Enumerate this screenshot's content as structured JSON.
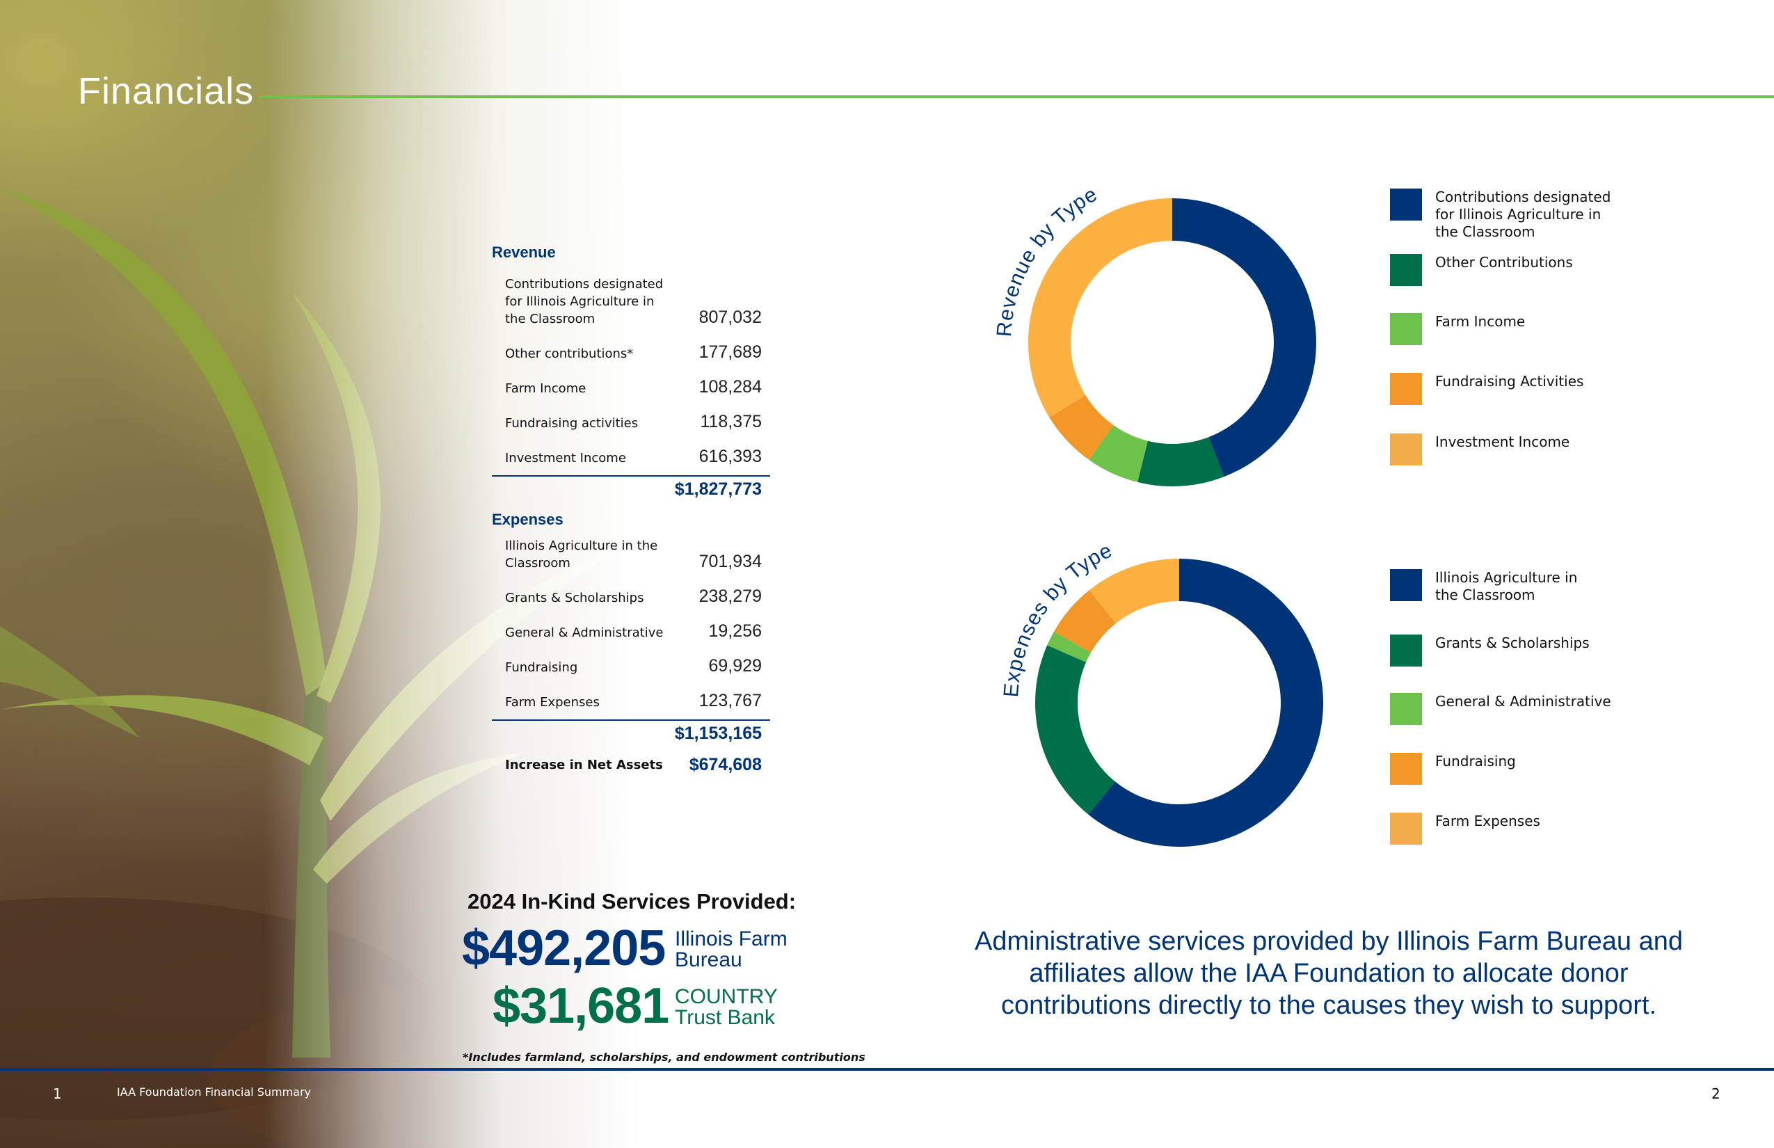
{
  "page": {
    "title": "Financials",
    "footer_left_page": "1",
    "footer_left_doc": "IAA Foundation Financial Summary",
    "footer_right_page": "2"
  },
  "financials": {
    "revenue_heading": "Revenue",
    "revenue_items": [
      {
        "label": "Contributions designated for Illinois Agriculture in the Classroom",
        "value": "807,032"
      },
      {
        "label": "Other contributions*",
        "value": "177,689"
      },
      {
        "label": "Farm Income",
        "value": "108,284"
      },
      {
        "label": "Fundraising activities",
        "value": "118,375"
      },
      {
        "label": "Investment Income",
        "value": "616,393"
      }
    ],
    "revenue_total": "$1,827,773",
    "expenses_heading": "Expenses",
    "expense_items": [
      {
        "label": "Illinois Agriculture in the Classroom",
        "value": "701,934"
      },
      {
        "label": "Grants & Scholarships",
        "value": "238,279"
      },
      {
        "label": "General & Administrative",
        "value": "19,256"
      },
      {
        "label": "Fundraising",
        "value": "69,929"
      },
      {
        "label": "Farm Expenses",
        "value": "123,767"
      }
    ],
    "expense_total": "$1,153,165",
    "net_label": "Increase in Net Assets",
    "net_value": "$674,608"
  },
  "in_kind": {
    "title": "2024 In-Kind Services Provided:",
    "amount_1": "$492,205",
    "source_1": "Illinois Farm Bureau",
    "amount_2": "$31,681",
    "source_2": "COUNTRY Trust Bank",
    "footnote": "*Includes farmland, scholarships, and endowment contributions"
  },
  "admin_message": "Administrative services provided by Illinois Farm Bureau and affiliates allow the IAA Foundation to allocate donor contributions directly to the causes they wish to support.",
  "chart_data": [
    {
      "type": "pie",
      "title": "Revenue by Type",
      "categories": [
        "Contributions designated for Illinois Agriculture in the Classroom",
        "Other Contributions",
        "Farm Income",
        "Fundraising Activities",
        "Investment Income"
      ],
      "values": [
        807032,
        177689,
        108284,
        118375,
        616393
      ],
      "colors": [
        "#003478",
        "#00704a",
        "#6cc24a",
        "#f29725",
        "#fbb040"
      ],
      "legend": "right"
    },
    {
      "type": "pie",
      "title": "Expenses by Type",
      "categories": [
        "Illinois Agriculture in the Classroom",
        "Grants & Scholarships",
        "General & Administrative",
        "Fundraising",
        "Farm Expenses"
      ],
      "values": [
        701934,
        238279,
        19256,
        69929,
        123767
      ],
      "colors": [
        "#003478",
        "#00704a",
        "#6cc24a",
        "#f29725",
        "#fbb040"
      ],
      "legend": "right"
    }
  ]
}
